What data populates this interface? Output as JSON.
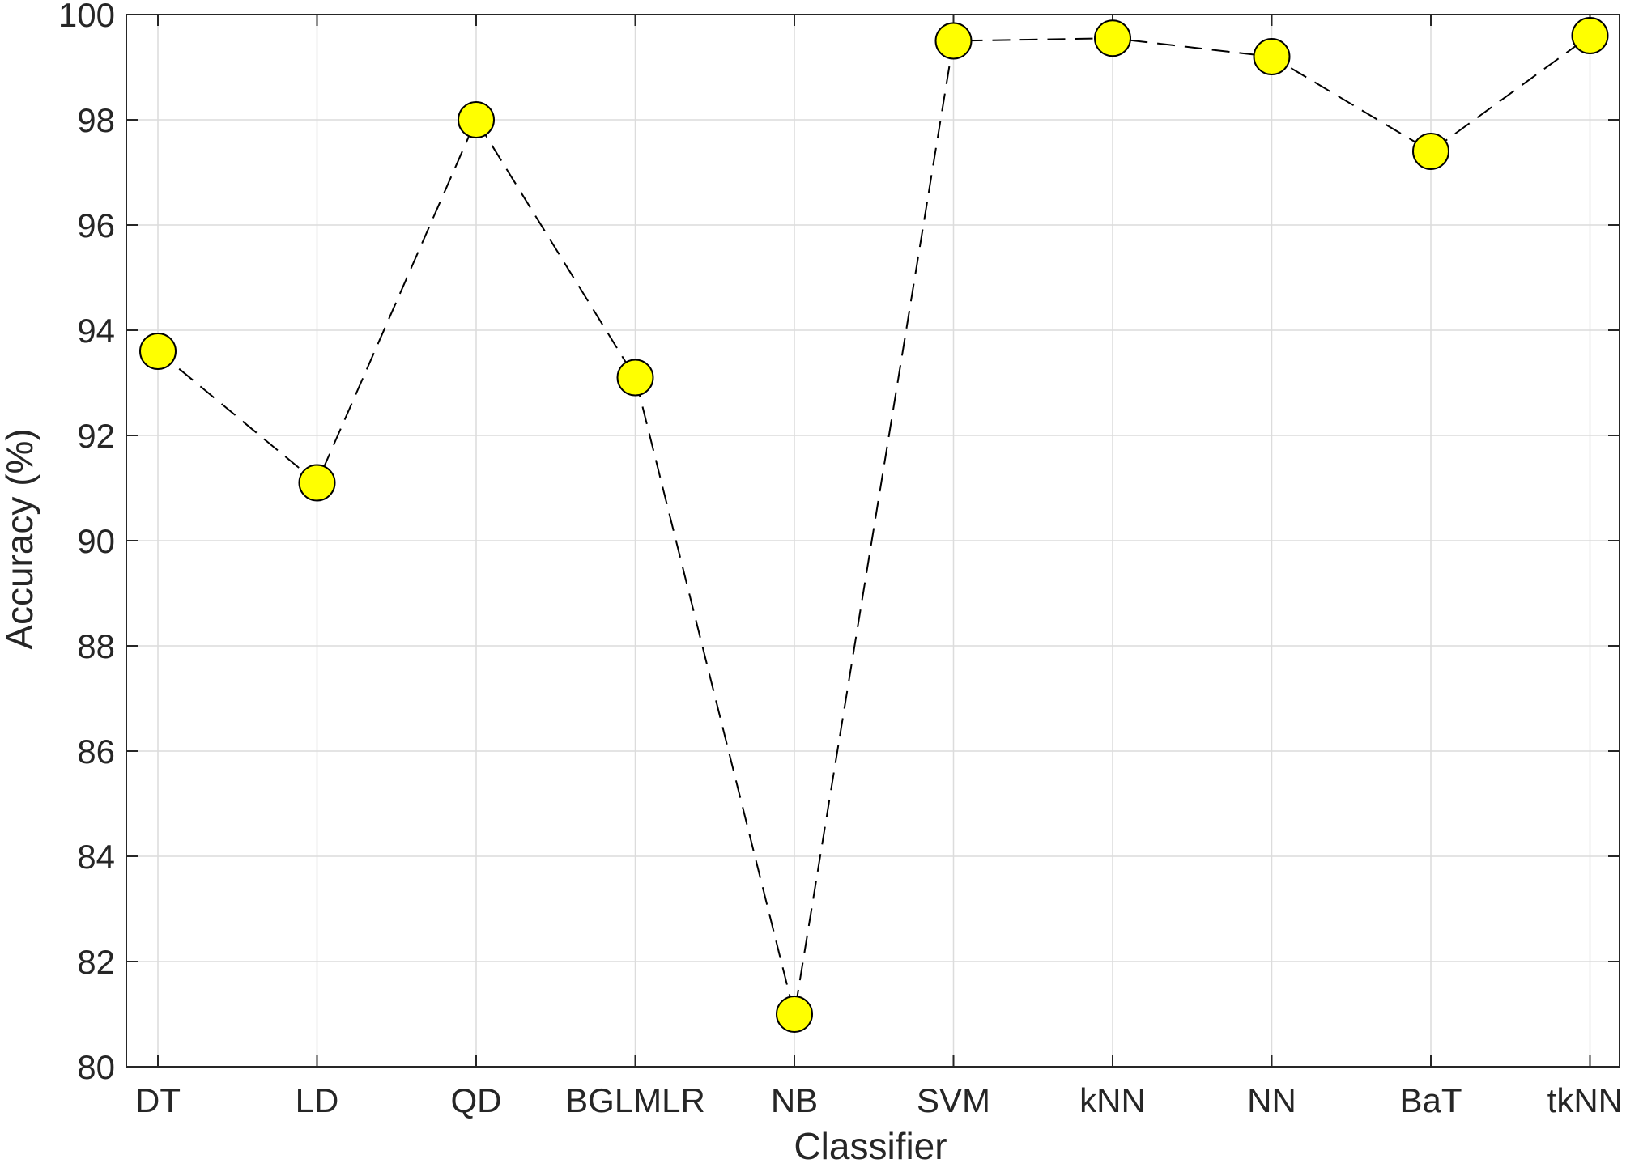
{
  "chart_data": {
    "type": "line",
    "title": "",
    "xlabel": "Classifier",
    "ylabel": "Accuracy (%)",
    "categories": [
      "DT",
      "LD",
      "QD",
      "BGLMLR",
      "NB",
      "SVM",
      "kNN",
      "NN",
      "BaT",
      "tkNN"
    ],
    "series": [
      {
        "values": [
          93.6,
          91.1,
          98.0,
          93.1,
          81.0,
          99.5,
          99.55,
          99.2,
          97.4,
          99.6
        ]
      }
    ],
    "ylim": [
      80,
      100
    ],
    "yticks": [
      80,
      82,
      84,
      86,
      88,
      90,
      92,
      94,
      96,
      98,
      100
    ],
    "grid": true,
    "line_style": "dashed",
    "colors": {
      "marker_fill": "#ffff00",
      "marker_edge": "#000000",
      "line": "#000000",
      "grid": "#dcdcdc",
      "axis": "#262626"
    }
  }
}
